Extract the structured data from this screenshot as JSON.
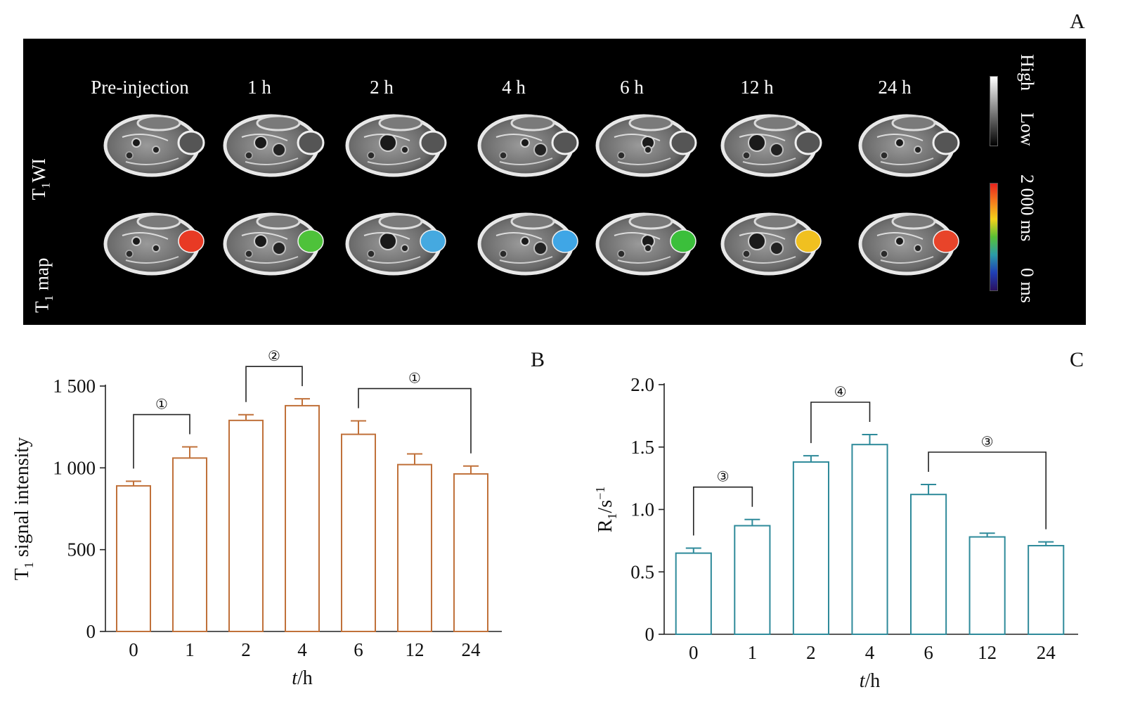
{
  "panel_a": {
    "letter": "A",
    "columns": [
      "Pre-injection",
      "1 h",
      "2 h",
      "4 h",
      "6 h",
      "12 h",
      "24 h"
    ],
    "rows": [
      {
        "label_main": "T",
        "label_sub": "1",
        "label_rest": "WI"
      },
      {
        "label_main": "T",
        "label_sub": "1",
        "label_rest": " map"
      }
    ],
    "grayscale_legend": {
      "high": "High",
      "low": "Low"
    },
    "color_legend": {
      "max": "2 000 ms",
      "min": "0 ms"
    },
    "tumor_colors": [
      "#e83a24",
      "#4ec23a",
      "#45a9e0",
      "#3fa6e6",
      "#3bbf3b",
      "#f0c020",
      "#e8442a"
    ]
  },
  "chart_data": [
    {
      "type": "bar",
      "panel_letter": "B",
      "categories": [
        "0",
        "1",
        "2",
        "4",
        "6",
        "12",
        "24"
      ],
      "values": [
        890,
        1060,
        1290,
        1380,
        1205,
        1020,
        963
      ],
      "errors": [
        28,
        68,
        35,
        42,
        82,
        65,
        48
      ],
      "ylabel_main": "T",
      "ylabel_sub": "1",
      "ylabel_rest": " signal intensity",
      "xlabel_italic": "t",
      "xlabel_rest": "/h",
      "ylim": [
        0,
        1500
      ],
      "yticks": [
        0,
        500,
        1000,
        1500
      ],
      "ytick_labels": [
        "0",
        "500",
        "1 000",
        "1 500"
      ],
      "color": "#c0713a",
      "brackets": [
        {
          "from": "0",
          "to": "1",
          "label": "①"
        },
        {
          "from": "2",
          "to": "4",
          "label": "②"
        },
        {
          "from": "6",
          "to": "24",
          "label": "①"
        }
      ]
    },
    {
      "type": "bar",
      "panel_letter": "C",
      "categories": [
        "0",
        "1",
        "2",
        "4",
        "6",
        "12",
        "24"
      ],
      "values": [
        0.65,
        0.87,
        1.38,
        1.52,
        1.12,
        0.78,
        0.71
      ],
      "errors": [
        0.04,
        0.05,
        0.05,
        0.08,
        0.08,
        0.03,
        0.03
      ],
      "ylabel_main": "R",
      "ylabel_sub": "1",
      "ylabel_rest": "/s",
      "ylabel_sup": "−1",
      "xlabel_italic": "t",
      "xlabel_rest": "/h",
      "ylim": [
        0,
        2.0
      ],
      "yticks": [
        0,
        0.5,
        1.0,
        1.5,
        2.0
      ],
      "ytick_labels": [
        "0",
        "0.5",
        "1.0",
        "1.5",
        "2.0"
      ],
      "color": "#2e8a9a",
      "brackets": [
        {
          "from": "0",
          "to": "1",
          "label": "③"
        },
        {
          "from": "2",
          "to": "4",
          "label": "④"
        },
        {
          "from": "6",
          "to": "24",
          "label": "③"
        }
      ]
    }
  ]
}
